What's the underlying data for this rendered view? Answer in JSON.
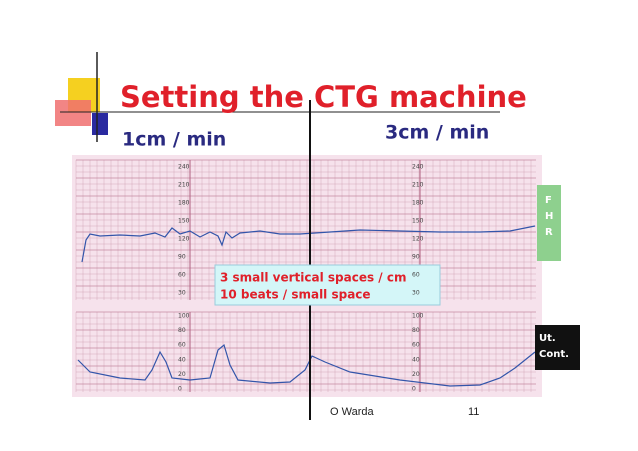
{
  "title": "Setting the CTG machine",
  "left_speed": "1cm / min",
  "right_speed": "3cm / min",
  "fhr_scale": [
    "240",
    "210",
    "180",
    "150",
    "120",
    "90",
    "60",
    "30"
  ],
  "uc_scale": [
    "100",
    "80",
    "60",
    "40",
    "20",
    "0"
  ],
  "fhr_label": [
    "F",
    "H",
    "R"
  ],
  "uc_label": [
    "Ut.",
    "Cont."
  ],
  "note": [
    "3 small vertical spaces / cm",
    "10 beats / small space"
  ],
  "footer": {
    "author": "O Warda",
    "page": "11"
  }
}
